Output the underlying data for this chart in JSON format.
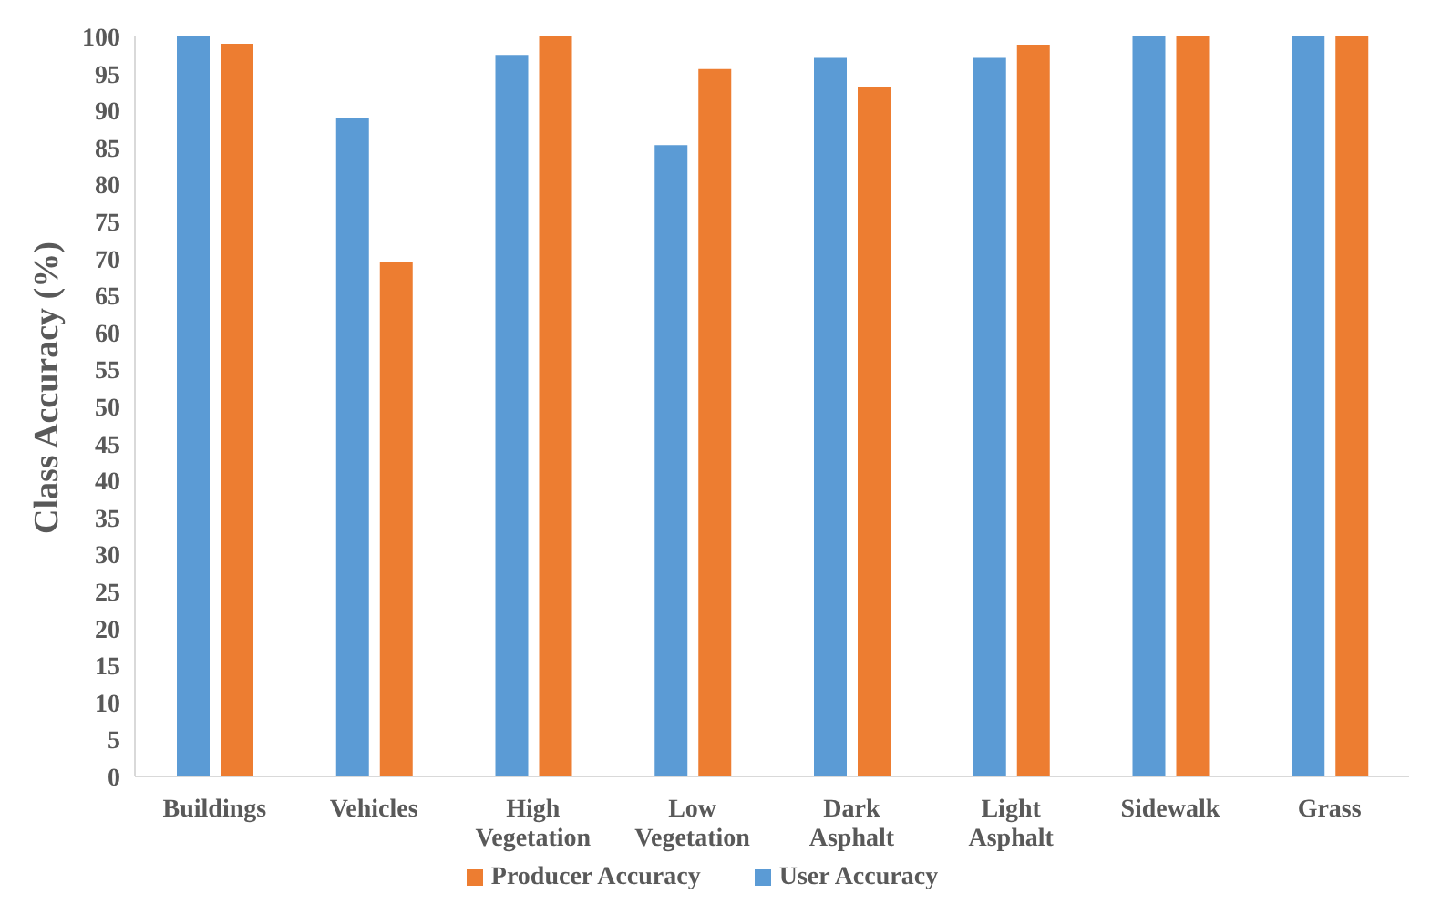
{
  "chart_data": {
    "type": "bar",
    "ylabel": "Class Accuracy (%)",
    "categories": [
      "Buildings",
      "Vehicles",
      "High Vegetation",
      "Low Vegetation",
      "Dark Asphalt",
      "Light Asphalt",
      "Sidewalk",
      "Grass"
    ],
    "series": [
      {
        "name": "User Accuracy",
        "color": "#5b9bd5",
        "values": [
          100,
          89,
          97.5,
          85.3,
          97.1,
          97.1,
          100,
          100
        ]
      },
      {
        "name": "Producer Accuracy",
        "color": "#ed7d31",
        "values": [
          99,
          69.5,
          100,
          95.6,
          93.1,
          98.9,
          100,
          100
        ]
      }
    ],
    "ylim": [
      0,
      100
    ],
    "yticks": [
      0,
      5,
      10,
      15,
      20,
      25,
      30,
      35,
      40,
      45,
      50,
      55,
      60,
      65,
      70,
      75,
      80,
      85,
      90,
      95,
      100
    ],
    "grid": false,
    "legend": "bottom"
  }
}
